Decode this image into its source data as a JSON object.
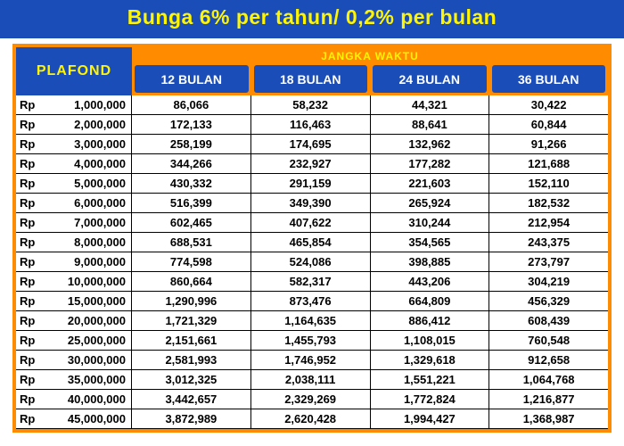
{
  "banner": "Bunga 6% per tahun/ 0,2% per bulan",
  "table": {
    "plafond_header": "PLAFOND",
    "period_header": "JANGKA WAKTU",
    "currency": "Rp",
    "periods": [
      "12 BULAN",
      "18 BULAN",
      "24 BULAN",
      "36 BULAN"
    ],
    "rows": [
      {
        "plafond": "1,000,000",
        "vals": [
          "86,066",
          "58,232",
          "44,321",
          "30,422"
        ]
      },
      {
        "plafond": "2,000,000",
        "vals": [
          "172,133",
          "116,463",
          "88,641",
          "60,844"
        ]
      },
      {
        "plafond": "3,000,000",
        "vals": [
          "258,199",
          "174,695",
          "132,962",
          "91,266"
        ]
      },
      {
        "plafond": "4,000,000",
        "vals": [
          "344,266",
          "232,927",
          "177,282",
          "121,688"
        ]
      },
      {
        "plafond": "5,000,000",
        "vals": [
          "430,332",
          "291,159",
          "221,603",
          "152,110"
        ]
      },
      {
        "plafond": "6,000,000",
        "vals": [
          "516,399",
          "349,390",
          "265,924",
          "182,532"
        ]
      },
      {
        "plafond": "7,000,000",
        "vals": [
          "602,465",
          "407,622",
          "310,244",
          "212,954"
        ]
      },
      {
        "plafond": "8,000,000",
        "vals": [
          "688,531",
          "465,854",
          "354,565",
          "243,375"
        ]
      },
      {
        "plafond": "9,000,000",
        "vals": [
          "774,598",
          "524,086",
          "398,885",
          "273,797"
        ]
      },
      {
        "plafond": "10,000,000",
        "vals": [
          "860,664",
          "582,317",
          "443,206",
          "304,219"
        ]
      },
      {
        "plafond": "15,000,000",
        "vals": [
          "1,290,996",
          "873,476",
          "664,809",
          "456,329"
        ]
      },
      {
        "plafond": "20,000,000",
        "vals": [
          "1,721,329",
          "1,164,635",
          "886,412",
          "608,439"
        ]
      },
      {
        "plafond": "25,000,000",
        "vals": [
          "2,151,661",
          "1,455,793",
          "1,108,015",
          "760,548"
        ]
      },
      {
        "plafond": "30,000,000",
        "vals": [
          "2,581,993",
          "1,746,952",
          "1,329,618",
          "912,658"
        ]
      },
      {
        "plafond": "35,000,000",
        "vals": [
          "3,012,325",
          "2,038,111",
          "1,551,221",
          "1,064,768"
        ]
      },
      {
        "plafond": "40,000,000",
        "vals": [
          "3,442,657",
          "2,329,269",
          "1,772,824",
          "1,216,877"
        ]
      },
      {
        "plafond": "45,000,000",
        "vals": [
          "3,872,989",
          "2,620,428",
          "1,994,427",
          "1,368,987"
        ]
      }
    ]
  },
  "colors": {
    "banner_bg": "#1a4db8",
    "banner_text": "#fff500",
    "border": "#ff8c00",
    "header_bg": "#1a4db8",
    "header_text": "#ffffff",
    "row_border": "#000000",
    "text": "#000000",
    "bg": "#ffffff"
  }
}
